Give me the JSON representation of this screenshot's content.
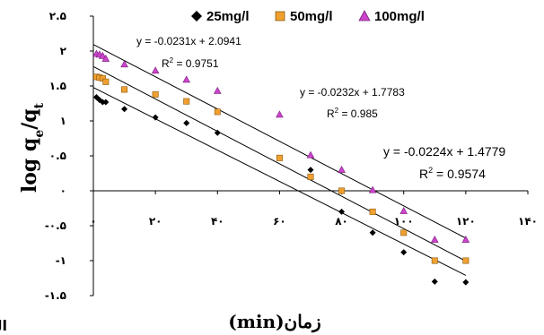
{
  "chart_data": {
    "type": "scatter",
    "title": "",
    "xlabel": "زمان(min)",
    "ylabel_main": "log q",
    "ylabel_sub1": "e",
    "ylabel_mid": "/q",
    "ylabel_sub2": "t",
    "panel_label": "الف)",
    "xlim": [
      0,
      140
    ],
    "ylim": [
      -1.5,
      2.5
    ],
    "grid": false,
    "legend": "top",
    "x_ticks": [
      {
        "value": 0,
        "label": "۰"
      },
      {
        "value": 20,
        "label": "۲۰"
      },
      {
        "value": 40,
        "label": "۴۰"
      },
      {
        "value": 60,
        "label": "۶۰"
      },
      {
        "value": 80,
        "label": "۸۰"
      },
      {
        "value": 100,
        "label": "۱۰۰"
      },
      {
        "value": 120,
        "label": "۱۲۰"
      },
      {
        "value": 140,
        "label": "۱۴۰"
      }
    ],
    "y_ticks": [
      {
        "value": 2.5,
        "label": "۲.۵"
      },
      {
        "value": 2,
        "label": "۲"
      },
      {
        "value": 1.5,
        "label": "۱.۵"
      },
      {
        "value": 1,
        "label": "۱"
      },
      {
        "value": 0.5,
        "label": "۰.۵"
      },
      {
        "value": 0,
        "label": "۰"
      },
      {
        "value": -0.5,
        "label": "-۰.۵"
      },
      {
        "value": -1,
        "label": "-۱"
      },
      {
        "value": -1.5,
        "label": "-۱.۵"
      }
    ],
    "series": [
      {
        "name": "25mg/l",
        "marker": "diamond",
        "color": "#000000",
        "x": [
          1,
          2,
          3,
          4,
          10,
          20,
          30,
          40,
          70,
          80,
          90,
          100,
          110,
          120
        ],
        "y": [
          1.34,
          1.3,
          1.27,
          1.27,
          1.17,
          1.05,
          0.97,
          0.83,
          0.3,
          -0.3,
          -0.6,
          -0.88,
          -1.3,
          -1.31
        ],
        "fit": {
          "x": [
            0,
            120
          ],
          "y": [
            1.4779,
            -1.2101
          ]
        },
        "equation": "y = -0.0224x + 1.4779",
        "r2_label": "R",
        "r2_value": " = 0.9574"
      },
      {
        "name": "50mg/l",
        "marker": "square",
        "color": "#f0a030",
        "x": [
          1,
          2,
          3,
          4,
          10,
          20,
          30,
          40,
          60,
          70,
          80,
          90,
          100,
          110,
          120
        ],
        "y": [
          1.63,
          1.62,
          1.61,
          1.56,
          1.45,
          1.38,
          1.28,
          1.13,
          0.47,
          0.2,
          0.0,
          -0.3,
          -0.6,
          -1.0,
          -1.0
        ],
        "fit": {
          "x": [
            0,
            120
          ],
          "y": [
            1.7783,
            -1.0057
          ]
        },
        "equation": "y = -0.0232x + 1.7783",
        "r2_label": "R",
        "r2_value": " = 0.985"
      },
      {
        "name": "100mg/l",
        "marker": "triangle",
        "color": "#cc44cc",
        "x": [
          1,
          2,
          3,
          4,
          10,
          20,
          30,
          40,
          60,
          70,
          80,
          90,
          100,
          110,
          120
        ],
        "y": [
          1.96,
          1.95,
          1.93,
          1.89,
          1.81,
          1.72,
          1.59,
          1.43,
          1.09,
          0.51,
          0.3,
          0.01,
          -0.29,
          -0.7,
          -0.7
        ],
        "fit": {
          "x": [
            0,
            120
          ],
          "y": [
            2.0941,
            -0.6779
          ]
        },
        "equation": "y = -0.0231x + 2.0941",
        "r2_label": "R",
        "r2_value": " = 0.9751"
      }
    ]
  }
}
